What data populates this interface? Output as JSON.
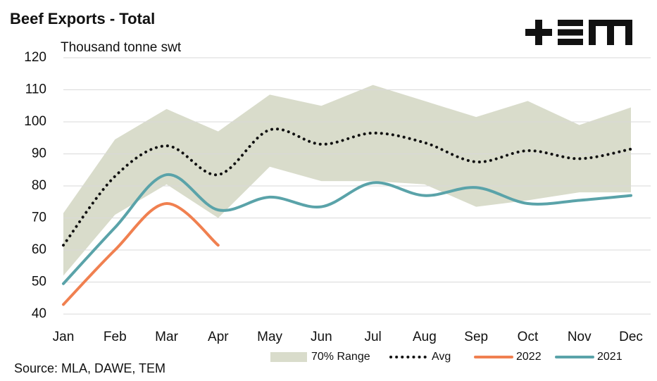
{
  "chart_data": {
    "type": "line",
    "title": "Beef Exports - Total",
    "subtitle": "Thousand tonne swt",
    "source": "Source: MLA, DAWE, TEM",
    "categories": [
      "Jan",
      "Feb",
      "Mar",
      "Apr",
      "May",
      "Jun",
      "Jul",
      "Aug",
      "Sep",
      "Oct",
      "Nov",
      "Dec"
    ],
    "ylim": [
      40,
      120
    ],
    "yticks": [
      40,
      50,
      60,
      70,
      80,
      90,
      100,
      110,
      120
    ],
    "grid": true,
    "band": {
      "name": "70% Range",
      "color": "#d9dccb",
      "lower": [
        52,
        71,
        80.5,
        70,
        86,
        81.5,
        81.5,
        80.5,
        73.5,
        75.5,
        78,
        78
      ],
      "upper": [
        71.5,
        94.5,
        104,
        97,
        108.5,
        105,
        111.5,
        106.5,
        101.5,
        106.5,
        99,
        104.5
      ]
    },
    "series": [
      {
        "name": "Avg",
        "color": "#111111",
        "dotted": true,
        "values": [
          61.5,
          83,
          92.5,
          83.5,
          97.5,
          93,
          96.5,
          93.5,
          87.5,
          91,
          88.5,
          91.5
        ]
      },
      {
        "name": "2022",
        "color": "#f08050",
        "values": [
          43,
          60,
          74.5,
          61.5,
          null,
          null,
          null,
          null,
          null,
          null,
          null,
          null
        ]
      },
      {
        "name": "2021",
        "color": "#5aa3a9",
        "values": [
          49.5,
          67,
          83.5,
          72.5,
          76.5,
          73.5,
          81,
          77,
          79.5,
          74.5,
          75.5,
          77
        ]
      }
    ]
  }
}
